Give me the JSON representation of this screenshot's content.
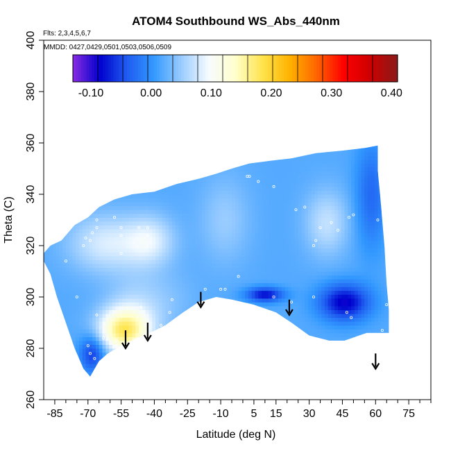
{
  "chart_data": {
    "type": "heatmap",
    "title": "ATOM4 Southbound WS_Abs_440nm",
    "annotations": [
      "Flts: 2,3,4,5,6,7",
      "MMDD: 0427,0429,0501,0503,0506,0509"
    ],
    "xlabel": "Latitude (deg N)",
    "ylabel": "Theta (C)",
    "xlim": [
      -90,
      85
    ],
    "ylim": [
      260,
      400
    ],
    "x_ticks": [
      -85,
      -70,
      -55,
      -40,
      -25,
      -10,
      5,
      15,
      30,
      45,
      60,
      75
    ],
    "y_ticks": [
      260,
      280,
      300,
      320,
      340,
      360,
      380,
      400
    ],
    "colorbar": {
      "range": [
        -0.13,
        0.41
      ],
      "ticks": [
        -0.1,
        0.0,
        0.1,
        0.2,
        0.3,
        0.4
      ],
      "tick_labels": [
        "-0.10",
        "0.00",
        "0.10",
        "0.20",
        "0.30",
        "0.40"
      ],
      "colors": [
        "#8a2be2",
        "#0000cd",
        "#1e5cf0",
        "#3399ff",
        "#99ccff",
        "#f5fbff",
        "#ffffcc",
        "#ffe44d",
        "#ffb300",
        "#ff6600",
        "#ff0000",
        "#cc0000",
        "#8b1a1a"
      ]
    },
    "field": {
      "boundary": [
        [
          -90,
          317
        ],
        [
          -87,
          320
        ],
        [
          -82,
          322
        ],
        [
          -76,
          328
        ],
        [
          -70,
          331
        ],
        [
          -65,
          335
        ],
        [
          -58,
          338
        ],
        [
          -50,
          340
        ],
        [
          -40,
          341
        ],
        [
          -30,
          344
        ],
        [
          -20,
          346
        ],
        [
          -12,
          348
        ],
        [
          -5,
          350
        ],
        [
          3,
          352
        ],
        [
          12,
          353
        ],
        [
          22,
          354
        ],
        [
          33,
          356
        ],
        [
          45,
          357
        ],
        [
          55,
          358
        ],
        [
          61,
          359
        ],
        [
          61,
          349
        ],
        [
          62,
          340
        ],
        [
          63,
          330
        ],
        [
          64,
          320
        ],
        [
          65,
          305
        ],
        [
          66,
          295
        ],
        [
          66,
          286
        ],
        [
          56,
          286
        ],
        [
          46,
          283
        ],
        [
          39,
          283
        ],
        [
          30,
          285
        ],
        [
          22,
          290
        ],
        [
          15,
          294
        ],
        [
          5,
          297
        ],
        [
          -5,
          299
        ],
        [
          -12,
          300
        ],
        [
          -20,
          298
        ],
        [
          -27,
          294
        ],
        [
          -35,
          289
        ],
        [
          -42,
          286
        ],
        [
          -48,
          284
        ],
        [
          -55,
          281
        ],
        [
          -61,
          278
        ],
        [
          -65,
          275
        ],
        [
          -67,
          272
        ],
        [
          -69,
          269
        ],
        [
          -72,
          272
        ],
        [
          -76,
          280
        ],
        [
          -80,
          290
        ],
        [
          -84,
          300
        ],
        [
          -87,
          309
        ],
        [
          -90,
          314
        ]
      ],
      "base_value": 0.02,
      "features": [
        {
          "lon": -54,
          "lat": 287,
          "value": 0.16,
          "sx": 8,
          "sy": 6
        },
        {
          "lon": -47,
          "lat": 295,
          "value": 0.06,
          "sx": 10,
          "sy": 10
        },
        {
          "lon": -62,
          "lat": 321,
          "value": 0.08,
          "sx": 12,
          "sy": 8
        },
        {
          "lon": -42,
          "lat": 322,
          "value": 0.08,
          "sx": 8,
          "sy": 7
        },
        {
          "lon": -8,
          "lat": 330,
          "value": 0.05,
          "sx": 8,
          "sy": 12
        },
        {
          "lon": 38,
          "lat": 329,
          "value": 0.07,
          "sx": 7,
          "sy": 9
        },
        {
          "lon": 46,
          "lat": 298,
          "value": -0.09,
          "sx": 8,
          "sy": 5
        },
        {
          "lon": 10,
          "lat": 301,
          "value": -0.08,
          "sx": 6,
          "sy": 2
        },
        {
          "lon": -68,
          "lat": 278,
          "value": -0.06,
          "sx": 4,
          "sy": 5
        },
        {
          "lon": 58,
          "lat": 340,
          "value": -0.03,
          "sx": 5,
          "sy": 15
        },
        {
          "lon": -30,
          "lat": 300,
          "value": 0.03,
          "sx": 8,
          "sy": 8
        }
      ],
      "samples": [
        [
          -80,
          314
        ],
        [
          -75,
          300
        ],
        [
          -69,
          278
        ],
        [
          -70,
          281
        ],
        [
          -66,
          293
        ],
        [
          -67,
          276
        ],
        [
          -63,
          284
        ],
        [
          -57,
          281
        ],
        [
          -57,
          283
        ],
        [
          -54,
          277
        ],
        [
          -51,
          279
        ],
        [
          -46,
          296
        ],
        [
          -44,
          289
        ],
        [
          -66,
          330
        ],
        [
          -66,
          327
        ],
        [
          -68,
          325
        ],
        [
          -69,
          322
        ],
        [
          -71,
          323
        ],
        [
          -72,
          320
        ],
        [
          -58,
          331
        ],
        [
          -55,
          324
        ],
        [
          -55,
          327
        ],
        [
          -55,
          317
        ],
        [
          -43,
          324
        ],
        [
          -47,
          327
        ],
        [
          -43,
          327
        ],
        [
          -32,
          299
        ],
        [
          -29,
          292
        ],
        [
          -37,
          289
        ],
        [
          -33,
          294
        ],
        [
          -17,
          303
        ],
        [
          -8,
          303
        ],
        [
          -2,
          308
        ],
        [
          -10,
          303
        ],
        [
          2,
          347
        ],
        [
          3,
          347
        ],
        [
          7,
          345
        ],
        [
          14,
          343
        ],
        [
          24,
          334
        ],
        [
          28,
          335
        ],
        [
          35,
          327
        ],
        [
          40,
          329
        ],
        [
          48,
          331
        ],
        [
          50,
          332
        ],
        [
          43,
          326
        ],
        [
          33,
          322
        ],
        [
          32,
          300
        ],
        [
          47,
          294
        ],
        [
          49,
          292
        ],
        [
          63,
          287
        ],
        [
          65,
          297
        ],
        [
          61,
          330
        ],
        [
          22,
          298
        ],
        [
          14,
          300
        ],
        [
          32,
          320
        ]
      ]
    },
    "arrows": [
      {
        "lat": -53,
        "theta_top": 287,
        "theta_bottom": 280
      },
      {
        "lat": -43,
        "theta_top": 290,
        "theta_bottom": 283
      },
      {
        "lat": -19,
        "theta_top": 302,
        "theta_bottom": 296
      },
      {
        "lat": 21,
        "theta_top": 299,
        "theta_bottom": 293
      },
      {
        "lat": 60,
        "theta_top": 278,
        "theta_bottom": 272
      }
    ]
  }
}
